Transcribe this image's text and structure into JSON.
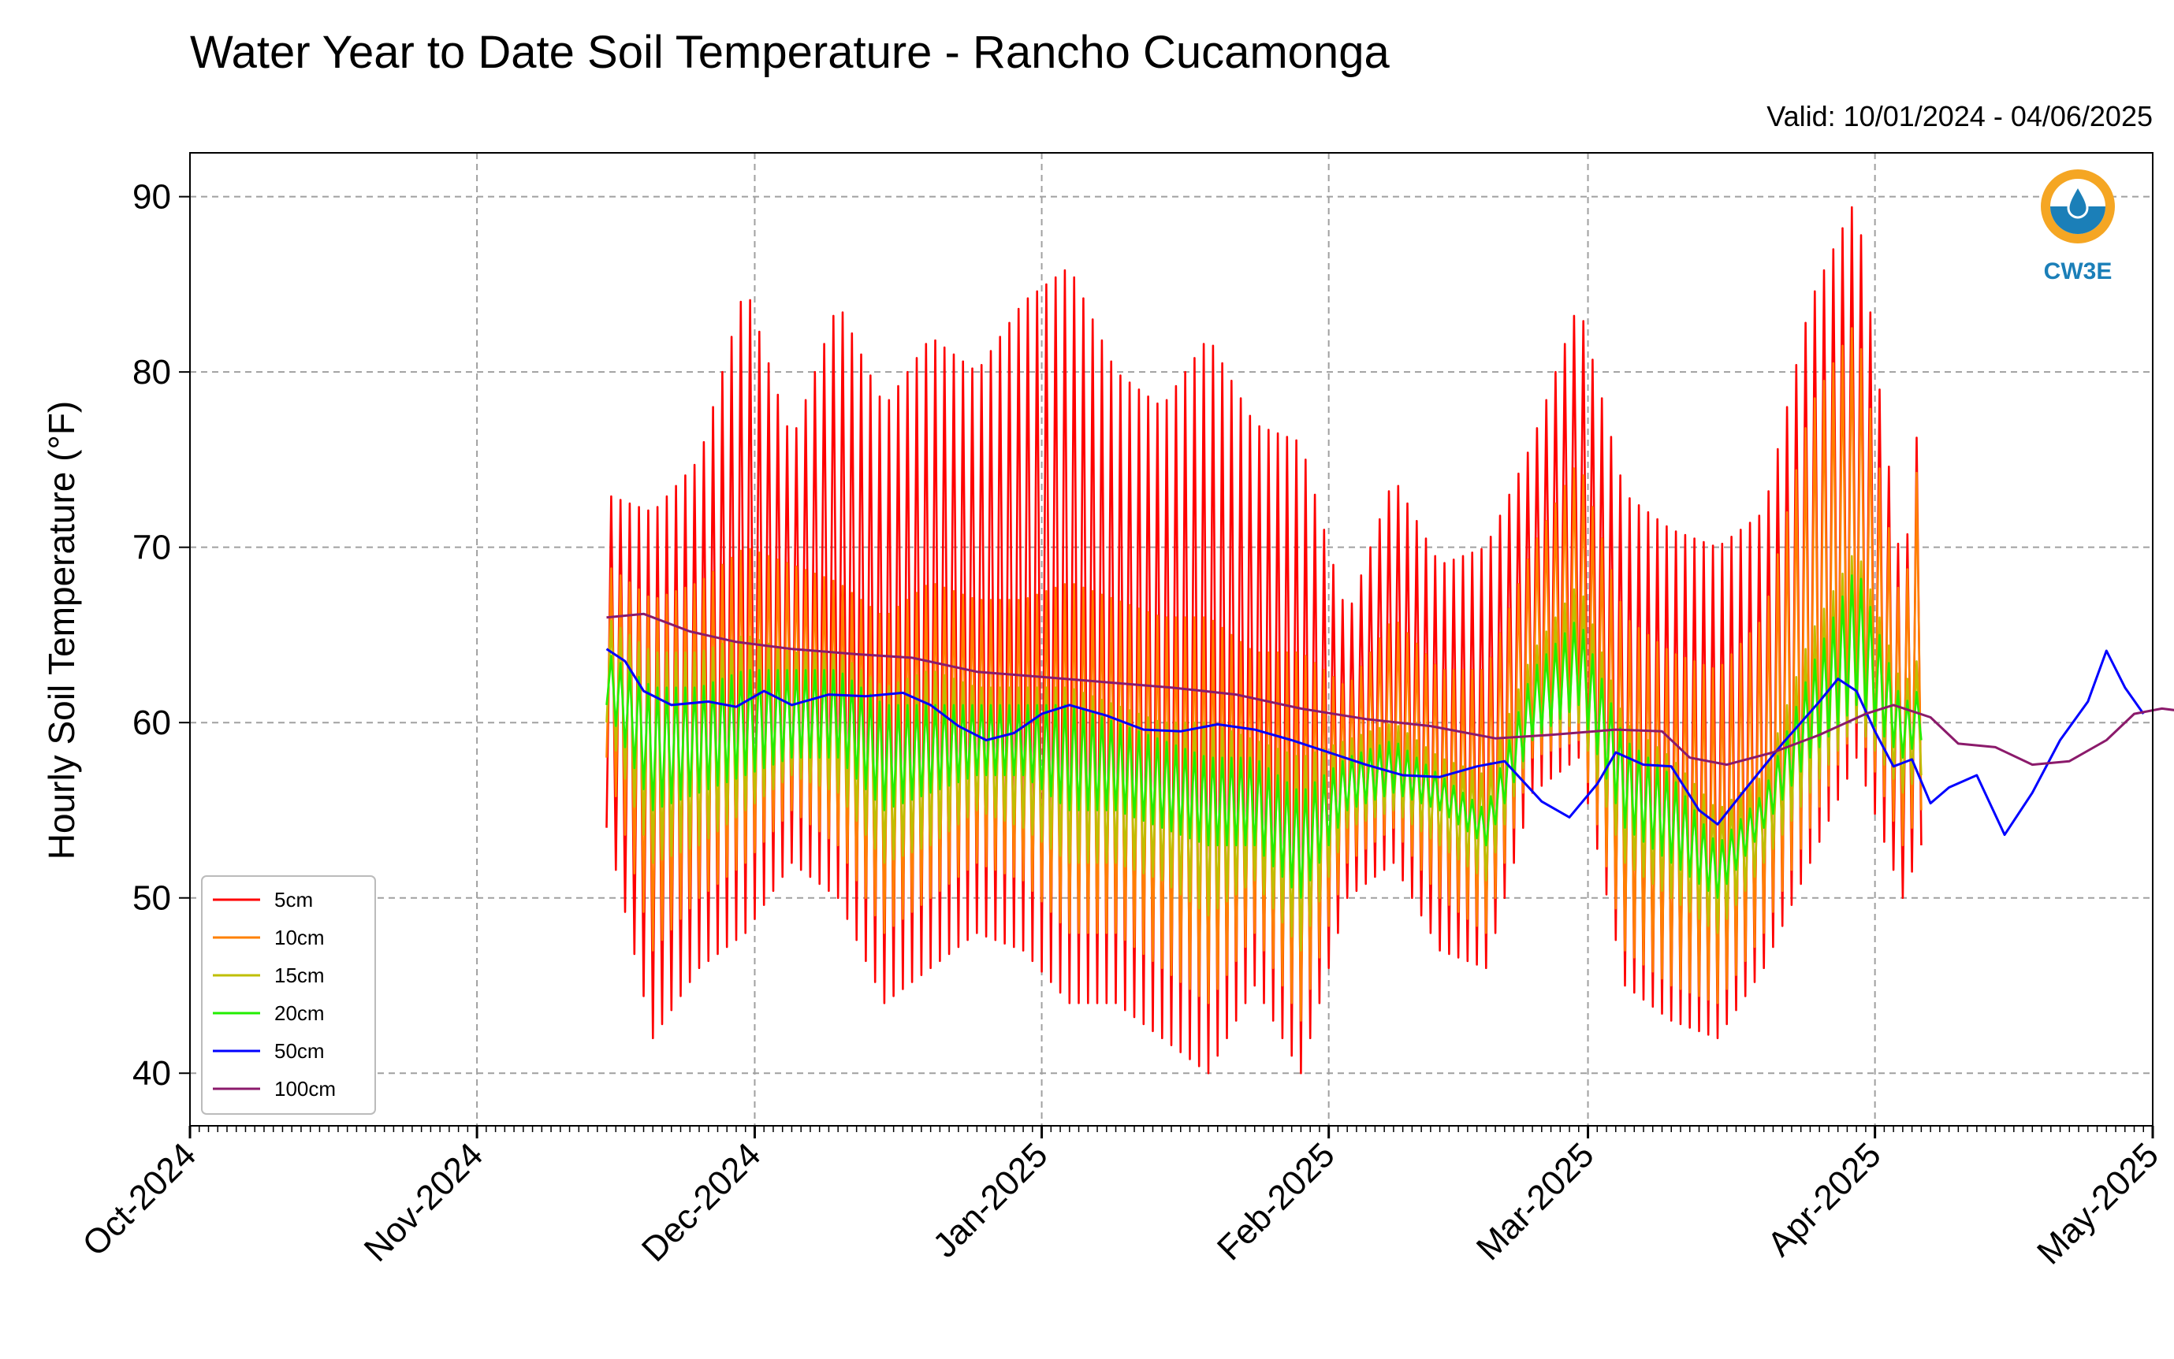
{
  "chart_data": {
    "type": "line",
    "title": "Water Year to Date Soil Temperature - Rancho Cucamonga",
    "subtitle": "Valid: 10/01/2024 - 04/06/2025",
    "ylabel": "Hourly Soil Temperature (°F)",
    "xlabel": "",
    "ylim": [
      37,
      92.5
    ],
    "yticks": [
      40,
      50,
      60,
      70,
      80,
      90
    ],
    "xlim": [
      "2024-10-01",
      "2025-05-01"
    ],
    "x_tick_labels": [
      "Oct-2024",
      "Nov-2024",
      "Dec-2024",
      "Jan-2025",
      "Feb-2025",
      "Mar-2025",
      "Apr-2025",
      "May-2025"
    ],
    "x_tick_dates": [
      "2024-10-01",
      "2024-11-01",
      "2024-12-01",
      "2025-01-01",
      "2025-02-01",
      "2025-03-01",
      "2025-04-01",
      "2025-05-01"
    ],
    "grid": true,
    "legend_position": "lower-left",
    "sample_note_dates": [
      "2024-11-15",
      "2024-11-20",
      "2024-11-25",
      "2024-11-30",
      "2024-12-05",
      "2024-12-10",
      "2024-12-15",
      "2024-12-20",
      "2024-12-25",
      "2024-12-30",
      "2025-01-04",
      "2025-01-09",
      "2025-01-14",
      "2025-01-19",
      "2025-01-24",
      "2025-01-29",
      "2025-02-03",
      "2025-02-08",
      "2025-02-13",
      "2025-02-18",
      "2025-02-23",
      "2025-02-28",
      "2025-03-05",
      "2025-03-10",
      "2025-03-15",
      "2025-03-20",
      "2025-03-25",
      "2025-03-30",
      "2025-04-04",
      "2025-04-06"
    ],
    "daily_extremes": [
      {
        "name": "5cm",
        "color": "#ff0000",
        "max": [
          73,
          72,
          75,
          85,
          76,
          84,
          78,
          82,
          80,
          84,
          86,
          80,
          78,
          82,
          77,
          76,
          66,
          74,
          69,
          70,
          76,
          84,
          73,
          71,
          70,
          72,
          84,
          90,
          68,
          79
        ],
        "min": [
          54,
          42,
          46,
          48,
          52,
          50,
          44,
          46,
          48,
          47,
          44,
          44,
          42,
          40,
          45,
          40,
          50,
          52,
          47,
          46,
          56,
          58,
          45,
          43,
          42,
          46,
          52,
          58,
          50,
          53
        ]
      },
      {
        "name": "10cm",
        "color": "#ff8000",
        "max": [
          69,
          67,
          68,
          70,
          69,
          68,
          66,
          68,
          67,
          67,
          68,
          67,
          66,
          66,
          64,
          64,
          62,
          66,
          63,
          63,
          70,
          75,
          66,
          64,
          63,
          66,
          78,
          83,
          66,
          77
        ],
        "min": [
          58,
          47,
          50,
          52,
          55,
          53,
          48,
          50,
          52,
          51,
          48,
          48,
          46,
          44,
          48,
          43,
          52,
          54,
          50,
          48,
          58,
          59,
          47,
          45,
          44,
          48,
          54,
          60,
          53,
          55
        ]
      },
      {
        "name": "15cm",
        "color": "#bfbf00",
        "max": [
          66,
          64,
          64,
          65,
          64,
          64,
          62,
          63,
          62,
          62,
          62,
          61,
          60,
          60,
          59,
          58,
          59,
          60,
          58,
          57,
          64,
          68,
          60,
          58,
          55,
          57,
          65,
          70,
          62,
          64
        ],
        "min": [
          60,
          52,
          53,
          55,
          57,
          56,
          52,
          53,
          55,
          54,
          52,
          52,
          51,
          49,
          51,
          47,
          54,
          55,
          53,
          51,
          59,
          60,
          52,
          50,
          48,
          52,
          56,
          60,
          56,
          57
        ]
      },
      {
        "name": "20cm",
        "color": "#22ee00",
        "max": [
          64,
          62,
          62,
          63,
          63,
          63,
          61,
          61,
          61,
          61,
          61,
          60,
          59,
          58,
          58,
          56,
          58,
          59,
          57,
          55,
          63,
          66,
          59,
          57,
          53,
          56,
          63,
          69,
          61,
          62
        ],
        "min": [
          61,
          55,
          56,
          57,
          58,
          58,
          55,
          56,
          57,
          57,
          55,
          55,
          54,
          53,
          53,
          50,
          55,
          56,
          55,
          53,
          59,
          61,
          54,
          52,
          50,
          54,
          58,
          61,
          58,
          59
        ]
      }
    ],
    "series": [
      {
        "name": "5cm",
        "color": "#ff0000"
      },
      {
        "name": "10cm",
        "color": "#ff8000"
      },
      {
        "name": "15cm",
        "color": "#bfbf00"
      },
      {
        "name": "20cm",
        "color": "#22ee00"
      },
      {
        "name": "50cm",
        "color": "#0000ff",
        "points": [
          [
            "2024-11-15",
            64.2
          ],
          [
            "2024-11-17",
            63.5
          ],
          [
            "2024-11-19",
            61.8
          ],
          [
            "2024-11-22",
            61.0
          ],
          [
            "2024-11-26",
            61.2
          ],
          [
            "2024-11-29",
            60.9
          ],
          [
            "2024-12-02",
            61.8
          ],
          [
            "2024-12-05",
            61.0
          ],
          [
            "2024-12-09",
            61.6
          ],
          [
            "2024-12-13",
            61.5
          ],
          [
            "2024-12-17",
            61.7
          ],
          [
            "2024-12-20",
            61.0
          ],
          [
            "2024-12-23",
            59.8
          ],
          [
            "2024-12-26",
            59.0
          ],
          [
            "2024-12-29",
            59.4
          ],
          [
            "2025-01-01",
            60.5
          ],
          [
            "2025-01-04",
            61.0
          ],
          [
            "2025-01-08",
            60.4
          ],
          [
            "2025-01-12",
            59.6
          ],
          [
            "2025-01-16",
            59.5
          ],
          [
            "2025-01-20",
            59.9
          ],
          [
            "2025-01-24",
            59.6
          ],
          [
            "2025-01-28",
            59.0
          ],
          [
            "2025-02-01",
            58.3
          ],
          [
            "2025-02-05",
            57.6
          ],
          [
            "2025-02-09",
            57.0
          ],
          [
            "2025-02-13",
            56.9
          ],
          [
            "2025-02-17",
            57.5
          ],
          [
            "2025-02-20",
            57.8
          ],
          [
            "2025-02-24",
            55.5
          ],
          [
            "2025-02-27",
            54.6
          ],
          [
            "2025-03-02",
            56.5
          ],
          [
            "2025-03-04",
            58.3
          ],
          [
            "2025-03-07",
            57.6
          ],
          [
            "2025-03-10",
            57.5
          ],
          [
            "2025-03-13",
            55.0
          ],
          [
            "2025-03-15",
            54.2
          ],
          [
            "2025-03-18",
            56.2
          ],
          [
            "2025-03-22",
            58.8
          ],
          [
            "2025-03-26",
            61.2
          ],
          [
            "2025-03-28",
            62.5
          ],
          [
            "2025-03-30",
            61.8
          ],
          [
            "2025-04-01",
            59.5
          ],
          [
            "2025-04-03",
            57.5
          ],
          [
            "2025-04-05",
            57.9
          ],
          [
            "2025-04-07",
            55.4
          ],
          [
            "2025-04-09",
            56.3
          ],
          [
            "2025-04-12",
            57.0
          ],
          [
            "2025-04-15",
            53.6
          ],
          [
            "2025-04-18",
            56.0
          ],
          [
            "2025-04-21",
            59.0
          ],
          [
            "2025-04-24",
            61.2
          ],
          [
            "2025-04-26",
            64.1
          ],
          [
            "2025-04-28",
            62.0
          ],
          [
            "2025-04-30",
            60.5
          ]
        ]
      },
      {
        "name": "100cm",
        "color": "#8b1a6b",
        "points": [
          [
            "2024-11-15",
            66.0
          ],
          [
            "2024-11-19",
            66.2
          ],
          [
            "2024-11-24",
            65.2
          ],
          [
            "2024-11-29",
            64.6
          ],
          [
            "2024-12-05",
            64.2
          ],
          [
            "2024-12-12",
            63.9
          ],
          [
            "2024-12-18",
            63.7
          ],
          [
            "2024-12-25",
            62.9
          ],
          [
            "2025-01-01",
            62.6
          ],
          [
            "2025-01-08",
            62.3
          ],
          [
            "2025-01-15",
            62.0
          ],
          [
            "2025-01-22",
            61.6
          ],
          [
            "2025-01-29",
            60.8
          ],
          [
            "2025-02-05",
            60.2
          ],
          [
            "2025-02-12",
            59.8
          ],
          [
            "2025-02-19",
            59.1
          ],
          [
            "2025-02-25",
            59.3
          ],
          [
            "2025-03-04",
            59.6
          ],
          [
            "2025-03-09",
            59.5
          ],
          [
            "2025-03-12",
            58.0
          ],
          [
            "2025-03-16",
            57.6
          ],
          [
            "2025-03-21",
            58.3
          ],
          [
            "2025-03-26",
            59.3
          ],
          [
            "2025-03-31",
            60.5
          ],
          [
            "2025-04-03",
            61.0
          ],
          [
            "2025-04-07",
            60.3
          ],
          [
            "2025-04-10",
            58.8
          ],
          [
            "2025-04-14",
            58.6
          ],
          [
            "2025-04-18",
            57.6
          ],
          [
            "2025-04-22",
            57.8
          ],
          [
            "2025-04-26",
            59.0
          ],
          [
            "2025-04-29",
            60.5
          ],
          [
            "2025-05-02",
            60.8
          ],
          [
            "2025-05-05",
            60.6
          ]
        ]
      }
    ],
    "logo_text": "CW3E"
  }
}
